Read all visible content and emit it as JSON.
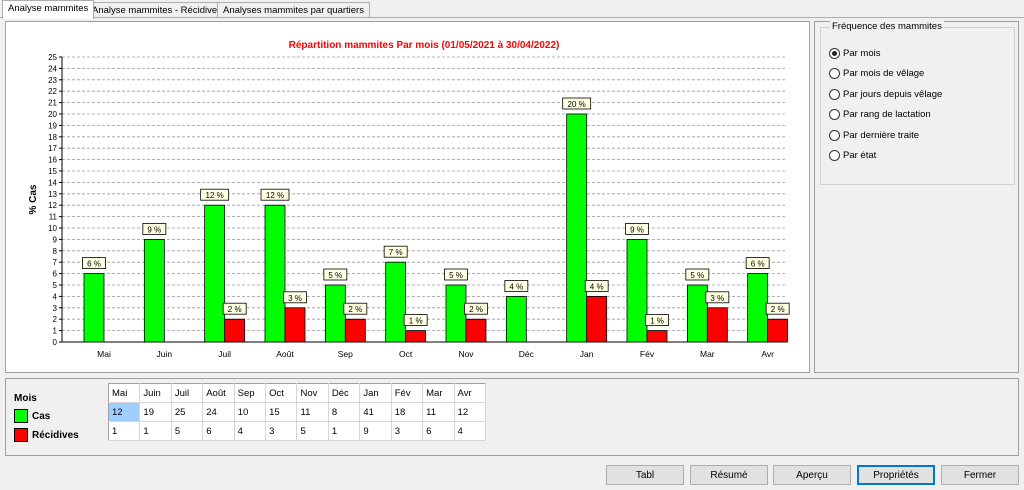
{
  "tabs": [
    {
      "label": "Analyse mammites",
      "active": true
    },
    {
      "label": "Analyse mammites - Récidive",
      "active": false
    },
    {
      "label": "Analyses mammites par quartiers",
      "active": false
    }
  ],
  "chart_data": {
    "type": "bar",
    "title": "Répartition mammites Par mois (01/05/2021 à 30/04/2022)",
    "ylabel": "% Cas",
    "xlabel": "",
    "ylim": [
      0,
      25
    ],
    "y_ticks": [
      "0",
      "1",
      "2",
      "3",
      "4",
      "5",
      "6",
      "7",
      "8",
      "9",
      "10",
      "11",
      "12",
      "13",
      "14",
      "15",
      "16",
      "17",
      "18",
      "19",
      "20",
      "21",
      "22",
      "23",
      "24",
      "25"
    ],
    "categories": [
      "Mai",
      "Juin",
      "Juil",
      "Août",
      "Sep",
      "Oct",
      "Nov",
      "Déc",
      "Jan",
      "Fév",
      "Mar",
      "Avr"
    ],
    "grid": true,
    "series": [
      {
        "name": "Cas",
        "color": "#00ff00",
        "values": [
          6,
          9,
          12,
          12,
          5,
          7,
          5,
          4,
          20,
          9,
          5,
          6
        ],
        "labels": [
          "6 %",
          "9 %",
          "12 %",
          "12 %",
          "5 %",
          "7 %",
          "5 %",
          "4 %",
          "20 %",
          "9 %",
          "5 %",
          "6 %"
        ]
      },
      {
        "name": "Récidives",
        "color": "#ff0000",
        "values": [
          0,
          0,
          2,
          3,
          2,
          1,
          2,
          0,
          4,
          1,
          3,
          2
        ],
        "labels": [
          "",
          "",
          "2 %",
          "3 %",
          "2 %",
          "1 %",
          "2 %",
          "",
          "4 %",
          "1 %",
          "3 %",
          "2 %"
        ]
      }
    ]
  },
  "frequency": {
    "title": "Fréquence des mammites",
    "options": [
      {
        "label": "Par mois",
        "checked": true
      },
      {
        "label": "Par mois de vêlage",
        "checked": false
      },
      {
        "label": "Par jours depuis vêlage",
        "checked": false
      },
      {
        "label": "Par rang de lactation",
        "checked": false
      },
      {
        "label": "Par dernière traite",
        "checked": false
      },
      {
        "label": "Par état",
        "checked": false
      }
    ]
  },
  "legend": {
    "title": "Mois",
    "items": [
      {
        "label": "Cas",
        "color": "#00ff00"
      },
      {
        "label": "Récidives",
        "color": "#ff0000"
      }
    ]
  },
  "table": {
    "headers": [
      "Mai",
      "Juin",
      "Juil",
      "Août",
      "Sep",
      "Oct",
      "Nov",
      "Déc",
      "Jan",
      "Fév",
      "Mar",
      "Avr"
    ],
    "rows": [
      [
        "12",
        "19",
        "25",
        "24",
        "10",
        "15",
        "11",
        "8",
        "41",
        "18",
        "11",
        "12"
      ],
      [
        "1",
        "1",
        "5",
        "6",
        "4",
        "3",
        "5",
        "1",
        "9",
        "3",
        "6",
        "4"
      ]
    ]
  },
  "buttons": {
    "tabl": "Tabl",
    "resume": "Résumé",
    "apercu": "Aperçu",
    "proprietes": "Propriétés",
    "fermer": "Fermer"
  }
}
